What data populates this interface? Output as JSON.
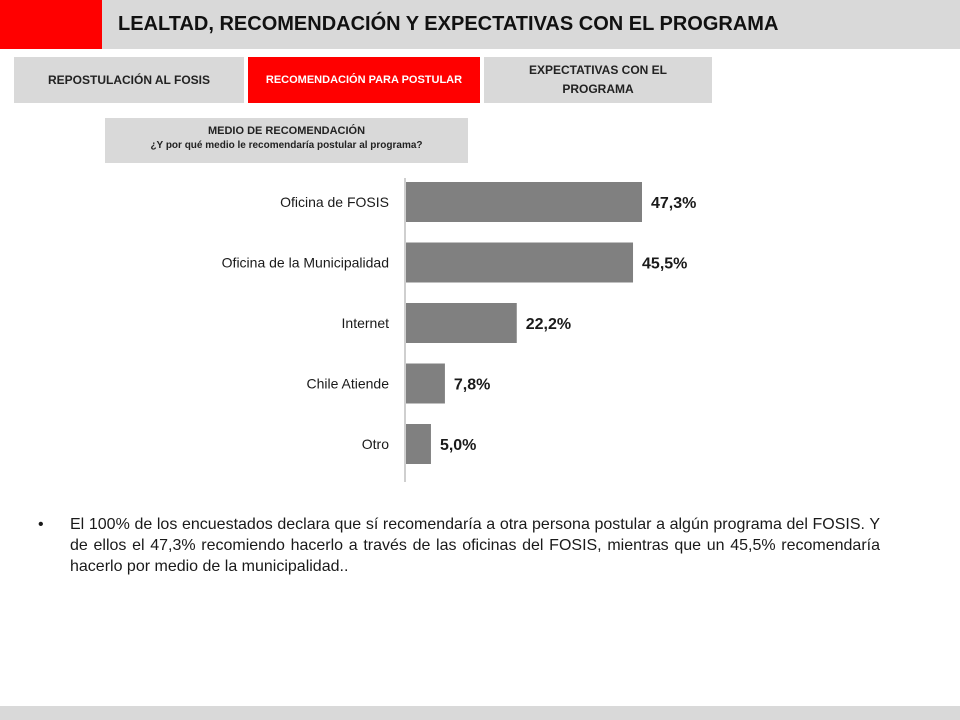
{
  "header": {
    "title": "LEALTAD, RECOMENDACIÓN Y EXPECTATIVAS CON EL PROGRAMA",
    "accent_color": "#ff0000"
  },
  "tabs": [
    {
      "label": "REPOSTULACIÓN AL FOSIS",
      "active": false
    },
    {
      "label": "RECOMENDACIÓN PARA POSTULAR",
      "active": true
    },
    {
      "label": "EXPECTATIVAS CON EL PROGRAMA",
      "active": false
    }
  ],
  "section": {
    "title": "MEDIO DE RECOMENDACIÓN",
    "question": "¿Y por qué medio le recomendaría postular al programa?"
  },
  "chart_data": {
    "type": "bar",
    "orientation": "horizontal",
    "categories": [
      "Oficina de FOSIS",
      "Oficina de la Municipalidad",
      "Internet",
      "Chile Atiende",
      "Otro"
    ],
    "values": [
      47.3,
      45.5,
      22.2,
      7.8,
      5.0
    ],
    "value_labels": [
      "47,3%",
      "45,5%",
      "22,2%",
      "7,8%",
      "5,0%"
    ],
    "bar_color": "#808080",
    "xlim": [
      0,
      50
    ],
    "grid": false,
    "legend": "none"
  },
  "bullet": {
    "text": "El 100% de los encuestados declara que sí recomendaría a otra persona postular a algún programa del FOSIS. Y de ellos el 47,3% recomiendo hacerlo a través de las oficinas del FOSIS, mientras que un 45,5% recomendaría hacerlo por medio de la municipalidad.."
  }
}
